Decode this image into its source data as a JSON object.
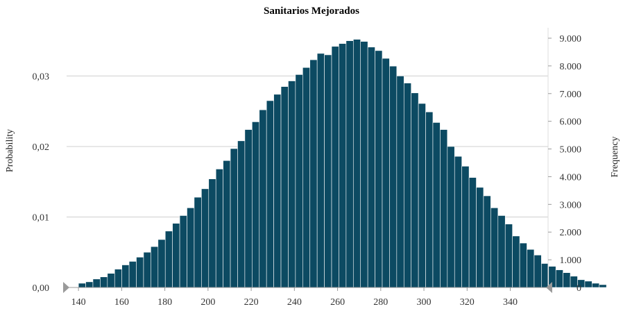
{
  "chart_data": {
    "type": "bar",
    "title": "Sanitarios Mejorados",
    "ylabel": "Probability",
    "y2label": "Frequency",
    "x_ticks": [
      140,
      160,
      180,
      200,
      220,
      240,
      260,
      280,
      300,
      320,
      340
    ],
    "x_tick_labels": [
      "140",
      "160",
      "180",
      "200",
      "220",
      "240",
      "260",
      "280",
      "300",
      "320",
      "340"
    ],
    "xlim": [
      134.5,
      357.5
    ],
    "y_ticks": [
      0,
      0.01,
      0.02,
      0.03
    ],
    "y_tick_labels": [
      "0,00",
      "0,01",
      "0,02",
      "0,03"
    ],
    "ylim": [
      0,
      0.03605
    ],
    "y2_ticks": [
      0,
      1000,
      2000,
      3000,
      4000,
      5000,
      6000,
      7000,
      8000,
      9000
    ],
    "y2_tick_labels": [
      "0",
      "1.000",
      "2.000",
      "3.000",
      "4.000",
      "5.000",
      "6.000",
      "7.000",
      "8.000",
      "9.000"
    ],
    "y2lim": [
      0,
      9000
    ],
    "bin_start": 140,
    "bin_width": 3.35,
    "values": [
      0.0006,
      0.0008,
      0.0012,
      0.0015,
      0.002,
      0.0026,
      0.0032,
      0.0037,
      0.0043,
      0.005,
      0.0058,
      0.0068,
      0.008,
      0.0091,
      0.0102,
      0.0113,
      0.0128,
      0.014,
      0.0154,
      0.0168,
      0.018,
      0.0197,
      0.0208,
      0.0224,
      0.0235,
      0.0252,
      0.0265,
      0.0274,
      0.0285,
      0.0293,
      0.0302,
      0.0312,
      0.0323,
      0.0332,
      0.033,
      0.0342,
      0.0346,
      0.035,
      0.0352,
      0.0349,
      0.0341,
      0.0336,
      0.0325,
      0.0314,
      0.03,
      0.029,
      0.0276,
      0.0261,
      0.0249,
      0.0234,
      0.0224,
      0.02,
      0.0186,
      0.0172,
      0.0156,
      0.0142,
      0.013,
      0.0113,
      0.0102,
      0.009,
      0.0073,
      0.0063,
      0.0054,
      0.0046,
      0.0034,
      0.003,
      0.0025,
      0.0021,
      0.0016,
      0.0011,
      0.0009,
      0.0006,
      0.0004
    ],
    "bar_color": "#0c4a62",
    "grid": true,
    "legend": "none"
  }
}
